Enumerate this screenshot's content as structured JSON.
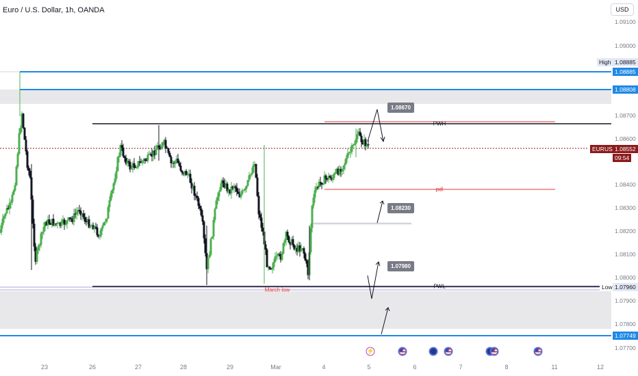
{
  "header": {
    "title": "Euro / U.S. Dollar, 1h, OANDA",
    "currency": "USD"
  },
  "price_axis": {
    "ticks": [
      "1.09100",
      "1.09000",
      "1.08700",
      "1.08600",
      "1.08400",
      "1.08300",
      "1.08200",
      "1.08100",
      "1.08000",
      "1.07900",
      "1.07800",
      "1.07700"
    ],
    "high_label": "High",
    "high_value": "1.08885",
    "level_2": "1.08808",
    "symbol": "EURUSD",
    "last_price": "1.08552",
    "countdown": "09:54",
    "low_label": "Low",
    "low_value": "1.07960",
    "level_bottom": "1.07749"
  },
  "time_axis": [
    "23",
    "26",
    "27",
    "28",
    "29",
    "Mar",
    "4",
    "5",
    "6",
    "7",
    "8",
    "11",
    "12"
  ],
  "annotations": {
    "pwh": "PWH",
    "pdl": "pdl",
    "pwl": "PWL",
    "march_low": "March low"
  },
  "callouts": {
    "upper": "1.08670",
    "middle": "1.08230",
    "lower": "1.07980"
  },
  "colors": {
    "blue_level": "#1e88e5",
    "last_price": "#8b1a1a",
    "bull": "#4caf50",
    "bear": "#131722",
    "zone": "#e8e8ea",
    "red_line": "#e53935"
  },
  "events": [
    "lightning-icon",
    "us-flag-icon",
    "eu-flag-icon",
    "us-flag-icon",
    "eu-flag-icon",
    "us-flag-icon",
    "us-flag-icon"
  ]
}
